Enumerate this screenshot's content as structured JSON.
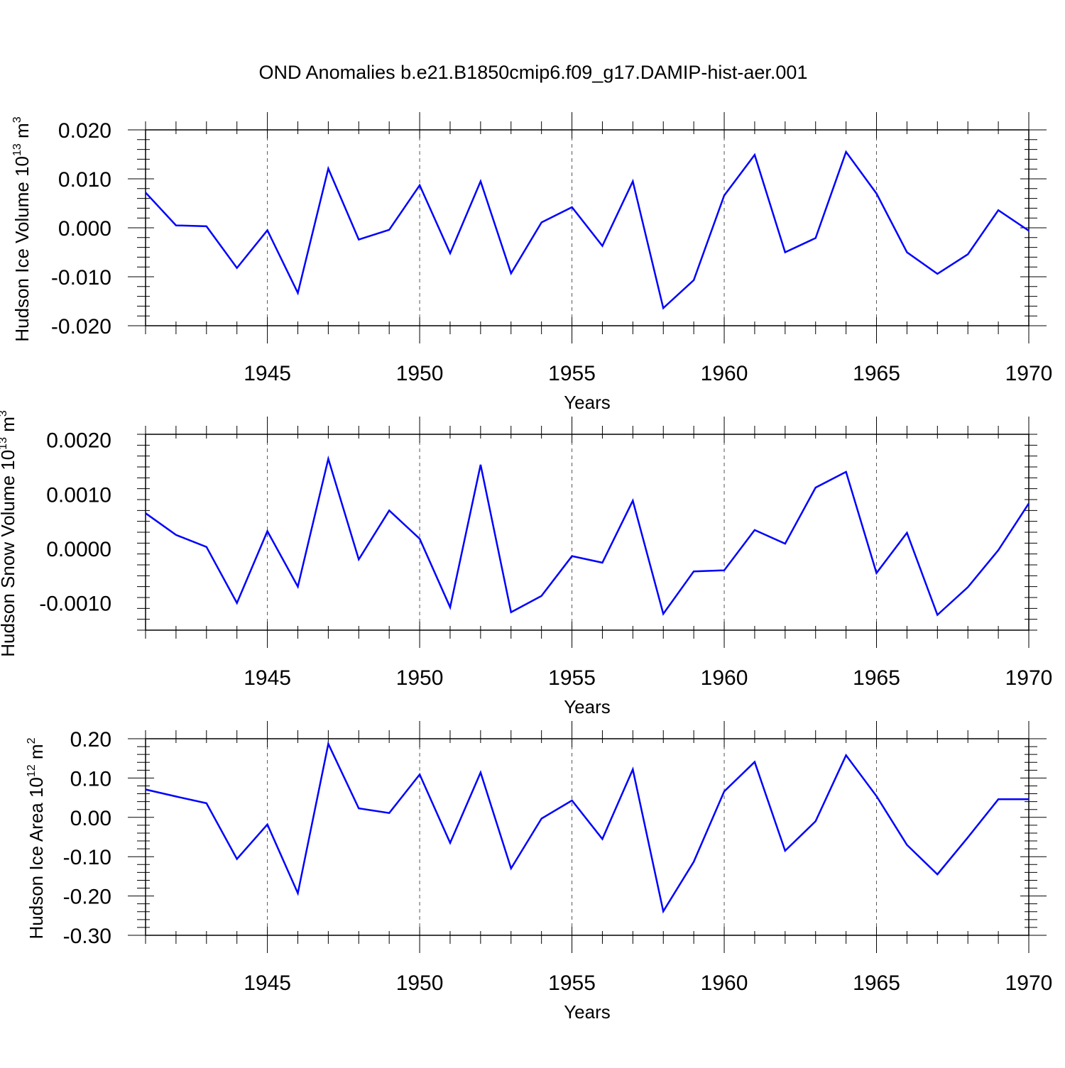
{
  "title": "OND Anomalies b.e21.B1850cmip6.f09_g17.DAMIP-hist-aer.001",
  "colors": {
    "line": "#0000ff",
    "axis": "#000000",
    "grid": "#555555"
  },
  "chart_data": [
    {
      "type": "line",
      "title": "OND Anomalies b.e21.B1850cmip6.f09_g17.DAMIP-hist-aer.001",
      "xlabel": "Years",
      "ylabel": {
        "text": "Hudson Ice Volume 10",
        "exp": "13",
        "unit": " m",
        "unitExp": "3"
      },
      "xlim": [
        1941,
        1970
      ],
      "ylim": [
        -0.02,
        0.02
      ],
      "xticks": [
        "1945",
        "1950",
        "1955",
        "1960",
        "1965",
        "1970"
      ],
      "yticks": [
        "0.020",
        "0.010",
        "0.000",
        "-0.010",
        "-0.020"
      ],
      "yticks_values": [
        0.02,
        0.01,
        0.0,
        -0.01,
        -0.02
      ],
      "x": [
        1941,
        1942,
        1943,
        1944,
        1945,
        1946,
        1947,
        1948,
        1949,
        1950,
        1951,
        1952,
        1953,
        1954,
        1955,
        1956,
        1957,
        1958,
        1959,
        1960,
        1961,
        1962,
        1963,
        1964,
        1965,
        1966,
        1967,
        1968,
        1969,
        1970
      ],
      "values": [
        0.0072,
        0.0005,
        0.0003,
        -0.0082,
        -0.0005,
        -0.0133,
        0.0121,
        -0.0024,
        -0.0004,
        0.0087,
        -0.0052,
        0.0095,
        -0.0093,
        0.0011,
        0.0042,
        -0.0037,
        0.0095,
        -0.0164,
        -0.0107,
        0.0066,
        0.0149,
        -0.005,
        -0.0021,
        0.0155,
        0.007,
        -0.005,
        -0.0094,
        -0.0054,
        0.0036,
        -0.0006
      ]
    },
    {
      "type": "line",
      "xlabel": "Years",
      "ylabel": {
        "text": "Hudson Snow Volume 10",
        "exp": "13",
        "unit": " m",
        "unitExp": "3"
      },
      "xlim": [
        1941,
        1970
      ],
      "ylim": [
        -0.0015,
        0.0021
      ],
      "xticks": [
        "1945",
        "1950",
        "1955",
        "1960",
        "1965",
        "1970"
      ],
      "yticks": [
        "0.0020",
        "0.0010",
        "0.0000",
        "-0.0010"
      ],
      "yticks_values": [
        0.002,
        0.001,
        0.0,
        -0.001
      ],
      "x": [
        1941,
        1942,
        1943,
        1944,
        1945,
        1946,
        1947,
        1948,
        1949,
        1950,
        1951,
        1952,
        1953,
        1954,
        1955,
        1956,
        1957,
        1958,
        1959,
        1960,
        1961,
        1962,
        1963,
        1964,
        1965,
        1966,
        1967,
        1968,
        1969,
        1970
      ],
      "values": [
        0.00065,
        0.00025,
        3e-05,
        -0.001,
        0.00032,
        -0.0007,
        0.00165,
        -0.0002,
        0.0007,
        0.00018,
        -0.00108,
        0.00154,
        -0.00117,
        -0.00087,
        -0.00014,
        -0.00026,
        0.00088,
        -0.0012,
        -0.00042,
        -0.0004,
        0.00034,
        9e-05,
        0.00112,
        0.00141,
        -0.00045,
        0.00029,
        -0.00122,
        -0.00071,
        -3e-05,
        0.00083
      ]
    },
    {
      "type": "line",
      "xlabel": "Years",
      "ylabel": {
        "text": "Hudson Ice Area 10",
        "exp": "12",
        "unit": " m",
        "unitExp": "2"
      },
      "xlim": [
        1941,
        1970
      ],
      "ylim": [
        -0.3,
        0.2
      ],
      "xticks": [
        "1945",
        "1950",
        "1955",
        "1960",
        "1965",
        "1970"
      ],
      "yticks": [
        "0.20",
        "0.10",
        "0.00",
        "-0.10",
        "-0.20",
        "-0.30"
      ],
      "yticks_values": [
        0.2,
        0.1,
        0.0,
        -0.1,
        -0.2,
        -0.3
      ],
      "x": [
        1941,
        1942,
        1943,
        1944,
        1945,
        1946,
        1947,
        1948,
        1949,
        1950,
        1951,
        1952,
        1953,
        1954,
        1955,
        1956,
        1957,
        1958,
        1959,
        1960,
        1961,
        1962,
        1963,
        1964,
        1965,
        1966,
        1967,
        1968,
        1969,
        1970
      ],
      "values": [
        0.071,
        0.053,
        0.036,
        -0.106,
        -0.018,
        -0.193,
        0.187,
        0.023,
        0.011,
        0.109,
        -0.065,
        0.114,
        -0.13,
        -0.003,
        0.043,
        -0.055,
        0.122,
        -0.239,
        -0.113,
        0.066,
        0.141,
        -0.085,
        -0.01,
        0.158,
        0.054,
        -0.07,
        -0.145,
        -0.051,
        0.046,
        0.046
      ]
    }
  ]
}
